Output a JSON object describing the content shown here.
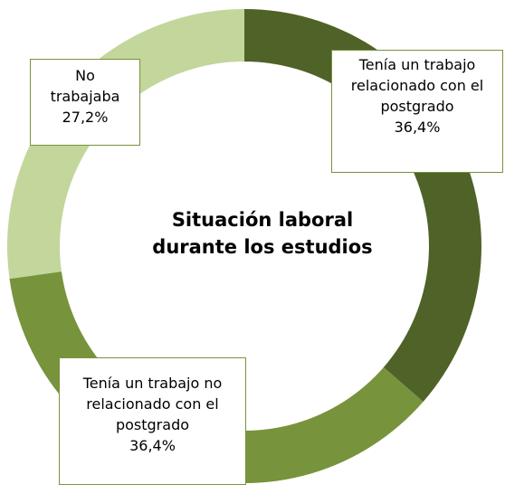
{
  "chart_data": {
    "type": "donut",
    "title": "Situación laboral durante los estudios",
    "categories": [
      "Tenía un trabajo relacionado con el postgrado",
      "Tenía un trabajo no relacionado con el postgrado",
      "No trabajaba"
    ],
    "values": [
      36.4,
      36.4,
      27.2
    ],
    "value_labels": [
      "36,4%",
      "36,4%",
      "27,2%"
    ],
    "colors": [
      "#4f6228",
      "#77933c",
      "#c3d69b"
    ]
  }
}
